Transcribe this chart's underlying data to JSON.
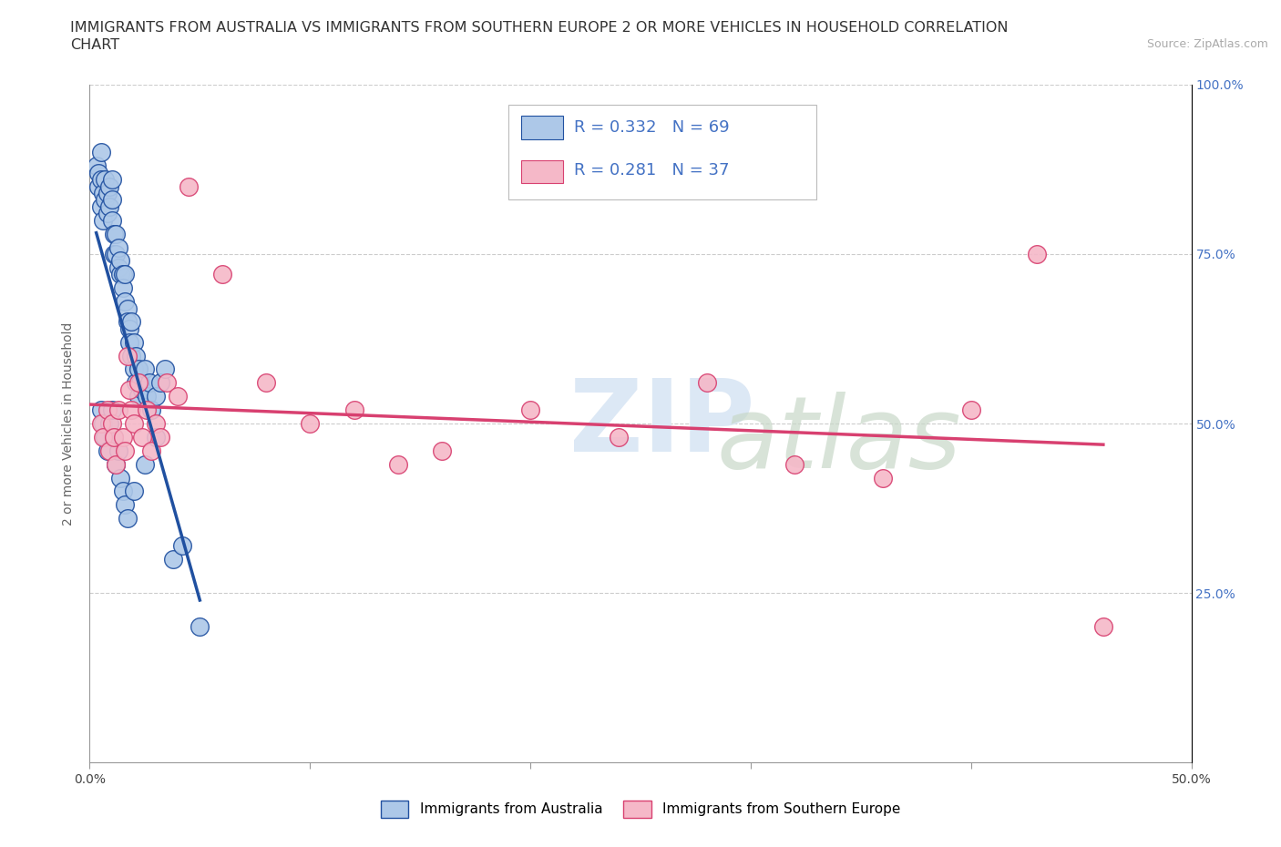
{
  "title_line1": "IMMIGRANTS FROM AUSTRALIA VS IMMIGRANTS FROM SOUTHERN EUROPE 2 OR MORE VEHICLES IN HOUSEHOLD CORRELATION",
  "title_line2": "CHART",
  "source_text": "Source: ZipAtlas.com",
  "ylabel": "2 or more Vehicles in Household",
  "xlim": [
    0.0,
    0.5
  ],
  "ylim": [
    0.0,
    1.0
  ],
  "R_australia": 0.332,
  "N_australia": 69,
  "R_southern_europe": 0.281,
  "N_southern_europe": 37,
  "legend_label_1": "Immigrants from Australia",
  "legend_label_2": "Immigrants from Southern Europe",
  "color_australia": "#adc8e8",
  "color_southern_europe": "#f5b8c8",
  "line_color_australia": "#2050a0",
  "line_color_southern_europe": "#d84070",
  "title_fontsize": 11.5,
  "axis_label_fontsize": 10,
  "tick_fontsize": 10,
  "source_fontsize": 9,
  "australia_x": [
    0.003,
    0.004,
    0.004,
    0.005,
    0.005,
    0.005,
    0.006,
    0.006,
    0.007,
    0.007,
    0.008,
    0.008,
    0.009,
    0.009,
    0.01,
    0.01,
    0.01,
    0.011,
    0.011,
    0.012,
    0.012,
    0.013,
    0.013,
    0.014,
    0.014,
    0.015,
    0.015,
    0.016,
    0.016,
    0.017,
    0.017,
    0.018,
    0.018,
    0.019,
    0.019,
    0.02,
    0.02,
    0.021,
    0.021,
    0.022,
    0.022,
    0.023,
    0.024,
    0.025,
    0.026,
    0.027,
    0.028,
    0.03,
    0.032,
    0.034,
    0.005,
    0.006,
    0.007,
    0.008,
    0.009,
    0.01,
    0.011,
    0.012,
    0.013,
    0.014,
    0.015,
    0.016,
    0.017,
    0.02,
    0.025,
    0.03,
    0.038,
    0.042,
    0.05
  ],
  "australia_y": [
    0.88,
    0.87,
    0.85,
    0.9,
    0.86,
    0.82,
    0.84,
    0.8,
    0.86,
    0.83,
    0.84,
    0.81,
    0.85,
    0.82,
    0.86,
    0.83,
    0.8,
    0.78,
    0.75,
    0.78,
    0.75,
    0.73,
    0.76,
    0.72,
    0.74,
    0.72,
    0.7,
    0.68,
    0.72,
    0.67,
    0.65,
    0.64,
    0.62,
    0.65,
    0.6,
    0.62,
    0.58,
    0.6,
    0.56,
    0.58,
    0.54,
    0.56,
    0.55,
    0.58,
    0.54,
    0.56,
    0.52,
    0.54,
    0.56,
    0.58,
    0.52,
    0.5,
    0.48,
    0.46,
    0.5,
    0.52,
    0.48,
    0.44,
    0.46,
    0.42,
    0.4,
    0.38,
    0.36,
    0.4,
    0.44,
    0.48,
    0.3,
    0.32,
    0.2
  ],
  "southern_europe_x": [
    0.005,
    0.006,
    0.008,
    0.009,
    0.01,
    0.011,
    0.012,
    0.013,
    0.015,
    0.016,
    0.017,
    0.018,
    0.019,
    0.02,
    0.022,
    0.024,
    0.026,
    0.028,
    0.03,
    0.032,
    0.035,
    0.04,
    0.045,
    0.06,
    0.08,
    0.1,
    0.12,
    0.14,
    0.16,
    0.2,
    0.24,
    0.28,
    0.32,
    0.36,
    0.4,
    0.43,
    0.46
  ],
  "southern_europe_y": [
    0.5,
    0.48,
    0.52,
    0.46,
    0.5,
    0.48,
    0.44,
    0.52,
    0.48,
    0.46,
    0.6,
    0.55,
    0.52,
    0.5,
    0.56,
    0.48,
    0.52,
    0.46,
    0.5,
    0.48,
    0.56,
    0.54,
    0.85,
    0.72,
    0.56,
    0.5,
    0.52,
    0.44,
    0.46,
    0.52,
    0.48,
    0.56,
    0.44,
    0.42,
    0.52,
    0.75,
    0.2
  ]
}
